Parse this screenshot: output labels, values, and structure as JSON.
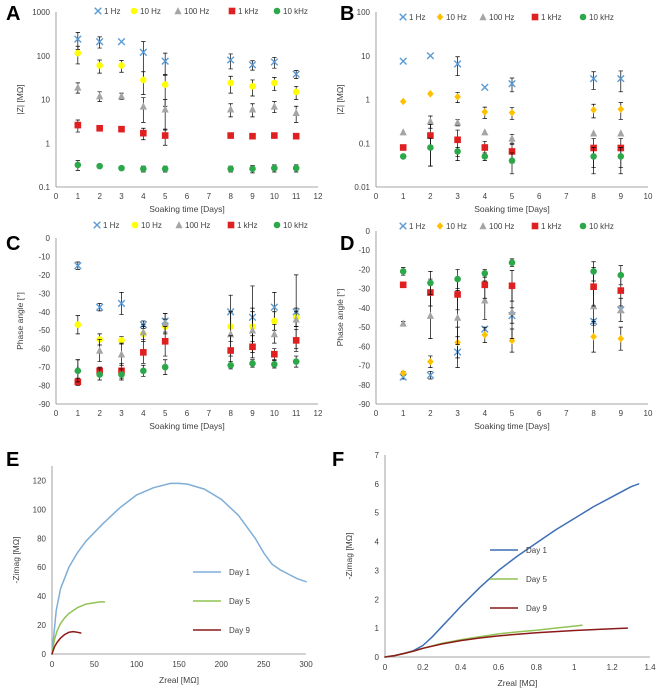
{
  "chart_data": [
    {
      "panel": "A",
      "type": "scatter",
      "yscale": "log",
      "xlabel": "Soaking time [Days]",
      "ylabel": "|Z| [MΩ]",
      "xlim": [
        0,
        12
      ],
      "xticks": [
        0,
        1,
        2,
        3,
        4,
        5,
        6,
        7,
        8,
        9,
        10,
        11,
        12
      ],
      "ylim": [
        0.1,
        1000
      ],
      "ytick_labels": [
        "0.1",
        "1",
        "10",
        "100",
        "1000"
      ],
      "ytick_values": [
        0.1,
        1,
        10,
        100,
        1000
      ],
      "series": [
        {
          "name": "1 Hz",
          "color": "#5b9bd5",
          "marker": "x",
          "x": [
            1,
            2,
            3,
            4,
            5,
            8,
            9,
            10,
            11
          ],
          "y": [
            240,
            210,
            210,
            120,
            75,
            80,
            62,
            72,
            38
          ],
          "err": [
            100,
            60,
            0,
            90,
            40,
            30,
            15,
            20,
            8
          ]
        },
        {
          "name": "10 Hz",
          "color": "#ffff00",
          "marker": "circle",
          "x": [
            1,
            2,
            3,
            4,
            5,
            8,
            9,
            10,
            11
          ],
          "y": [
            115,
            60,
            60,
            28,
            22,
            24,
            20,
            24,
            15
          ],
          "err": [
            50,
            20,
            18,
            15,
            15,
            10,
            8,
            8,
            5
          ]
        },
        {
          "name": "100 Hz",
          "color": "#a5a5a5",
          "marker": "triangle",
          "x": [
            1,
            2,
            3,
            4,
            5,
            8,
            9,
            10,
            11
          ],
          "y": [
            19,
            12,
            12,
            7,
            6,
            6,
            6,
            7,
            5
          ],
          "err": [
            5,
            3,
            2,
            4,
            4,
            2,
            2,
            2,
            2
          ]
        },
        {
          "name": "1 kHz",
          "color": "#e02020",
          "marker": "square",
          "x": [
            1,
            2,
            3,
            4,
            5,
            8,
            9,
            10,
            11
          ],
          "y": [
            2.6,
            2.2,
            2.1,
            1.7,
            1.5,
            1.5,
            1.45,
            1.5,
            1.45
          ],
          "err": [
            0.8,
            0,
            0,
            0.5,
            0.6,
            0,
            0,
            0,
            0
          ]
        },
        {
          "name": "10 kHz",
          "color": "#2ca84b",
          "marker": "circle",
          "x": [
            1,
            2,
            3,
            4,
            5,
            8,
            9,
            10,
            11
          ],
          "y": [
            0.32,
            0.3,
            0.27,
            0.26,
            0.26,
            0.26,
            0.26,
            0.27,
            0.27
          ],
          "err": [
            0.08,
            0,
            0,
            0.04,
            0.04,
            0.04,
            0.05,
            0.05,
            0.05
          ]
        }
      ]
    },
    {
      "panel": "B",
      "type": "scatter",
      "yscale": "log",
      "xlabel": "Soaking time [Days]",
      "ylabel": "|Z| [MΩ]",
      "xlim": [
        0,
        10
      ],
      "xticks": [
        0,
        1,
        2,
        3,
        4,
        5,
        6,
        7,
        8,
        9,
        10
      ],
      "ylim": [
        0.01,
        100
      ],
      "ytick_labels": [
        "0.01",
        "0.1",
        "1",
        "10",
        "100"
      ],
      "ytick_values": [
        0.01,
        0.1,
        1,
        10,
        100
      ],
      "series": [
        {
          "name": "1 Hz",
          "color": "#5b9bd5",
          "marker": "x",
          "x": [
            1,
            2,
            3,
            4,
            5,
            8,
            9
          ],
          "y": [
            7.5,
            10,
            6.5,
            1.9,
            2.3,
            3.0,
            3.0
          ],
          "err": [
            0,
            0,
            3,
            0,
            0.8,
            1.3,
            1.5
          ]
        },
        {
          "name": "10 Hz",
          "color": "#ffc000",
          "marker": "diamond",
          "x": [
            1,
            2,
            3,
            4,
            5,
            8,
            9
          ],
          "y": [
            0.9,
            1.35,
            1.15,
            0.52,
            0.5,
            0.58,
            0.6
          ],
          "err": [
            0,
            0,
            0.3,
            0.15,
            0.15,
            0.2,
            0.25
          ]
        },
        {
          "name": "100 Hz",
          "color": "#a5a5a5",
          "marker": "triangle",
          "x": [
            1,
            2,
            3,
            4,
            5,
            8,
            9
          ],
          "y": [
            0.18,
            0.32,
            0.3,
            0.18,
            0.13,
            0.17,
            0.17
          ],
          "err": [
            0,
            0.1,
            0.05,
            0,
            0.03,
            0,
            0
          ]
        },
        {
          "name": "1 kHz",
          "color": "#e02020",
          "marker": "square",
          "x": [
            1,
            2,
            3,
            4,
            5,
            8,
            9
          ],
          "y": [
            0.08,
            0.15,
            0.12,
            0.08,
            0.065,
            0.078,
            0.078
          ],
          "err": [
            0,
            0.12,
            0.08,
            0.03,
            0.03,
            0.05,
            0.05
          ]
        },
        {
          "name": "10 kHz",
          "color": "#2ca84b",
          "marker": "circle",
          "x": [
            1,
            2,
            3,
            4,
            5,
            8,
            9
          ],
          "y": [
            0.05,
            0.08,
            0.065,
            0.05,
            0.04,
            0.05,
            0.05
          ],
          "err": [
            0,
            0.05,
            0.015,
            0.01,
            0.02,
            0.03,
            0.03
          ]
        }
      ]
    },
    {
      "panel": "C",
      "type": "scatter",
      "xlabel": "Soaking time [Days]",
      "ylabel": "Phase angle [°]",
      "xlim": [
        0,
        12
      ],
      "xticks": [
        0,
        1,
        2,
        3,
        4,
        5,
        6,
        7,
        8,
        9,
        10,
        11,
        12
      ],
      "ylim": [
        -90,
        0
      ],
      "yticks": [
        0,
        -10,
        -20,
        -30,
        -40,
        -50,
        -60,
        -70,
        -80,
        -90
      ],
      "series": [
        {
          "name": "1 Hz",
          "color": "#5b9bd5",
          "marker": "x",
          "x": [
            1,
            2,
            3,
            4,
            5,
            8,
            9,
            10,
            11
          ],
          "y": [
            -15,
            -37.5,
            -35.5,
            -47,
            -45,
            -40,
            -43,
            -37.5,
            -40
          ],
          "err": [
            2,
            2,
            6,
            2,
            4,
            9,
            17,
            8,
            20
          ]
        },
        {
          "name": "10 Hz",
          "color": "#ffff00",
          "marker": "circle",
          "x": [
            1,
            2,
            3,
            4,
            5,
            8,
            9,
            10,
            11
          ],
          "y": [
            -47,
            -55,
            -55.5,
            -52,
            -48,
            -48,
            -48,
            -45,
            -43
          ],
          "err": [
            5,
            3,
            2,
            4,
            4,
            8,
            8,
            5,
            5
          ]
        },
        {
          "name": "100 Hz",
          "color": "#a5a5a5",
          "marker": "triangle",
          "x": [
            1,
            2,
            3,
            4,
            5,
            8,
            9,
            10,
            11
          ],
          "y": [
            -71,
            -61,
            -63,
            -51,
            -46,
            -52,
            -50,
            -52,
            -44
          ],
          "err": [
            5,
            6,
            6,
            4,
            5,
            12,
            12,
            5,
            4
          ]
        },
        {
          "name": "1 kHz",
          "color": "#e02020",
          "marker": "square",
          "x": [
            1,
            2,
            3,
            4,
            5,
            8,
            9,
            10,
            11
          ],
          "y": [
            -78,
            -72,
            -72,
            -62,
            -56,
            -61,
            -59,
            -63,
            -55.5
          ],
          "err": [
            2,
            2,
            4,
            6,
            8,
            8,
            6,
            3,
            6
          ]
        },
        {
          "name": "10 kHz",
          "color": "#2ca84b",
          "marker": "circle",
          "x": [
            1,
            2,
            3,
            4,
            5,
            8,
            9,
            10,
            11
          ],
          "y": [
            -72,
            -74,
            -74,
            -72,
            -70,
            -69,
            -68,
            -68.5,
            -67
          ],
          "err": [
            6,
            3,
            3,
            3,
            4,
            2,
            2,
            2,
            3
          ]
        }
      ]
    },
    {
      "panel": "D",
      "type": "scatter",
      "xlabel": "Soaking time [Days]",
      "ylabel": "Phase angle [°]",
      "xlim": [
        0,
        10
      ],
      "xticks": [
        0,
        1,
        2,
        3,
        4,
        5,
        6,
        7,
        8,
        9,
        10
      ],
      "ylim": [
        -90,
        0
      ],
      "yticks": [
        0,
        -10,
        -20,
        -30,
        -40,
        -50,
        -60,
        -70,
        -80,
        -90
      ],
      "series": [
        {
          "name": "1 Hz",
          "color": "#5b9bd5",
          "marker": "x",
          "x": [
            1,
            2,
            3,
            4,
            5,
            8,
            9
          ],
          "y": [
            -76,
            -75,
            -63,
            -51,
            -44,
            -47,
            -41
          ],
          "err": [
            1,
            2,
            8,
            0,
            4,
            1,
            1
          ]
        },
        {
          "name": "10 Hz",
          "color": "#ffc000",
          "marker": "diamond",
          "x": [
            1,
            2,
            3,
            4,
            5,
            8,
            9
          ],
          "y": [
            -74,
            -68,
            -58,
            -54,
            -57,
            -55,
            -56
          ],
          "err": [
            1,
            3,
            8,
            4,
            6,
            8,
            6
          ]
        },
        {
          "name": "100 Hz",
          "color": "#a5a5a5",
          "marker": "triangle",
          "x": [
            1,
            2,
            3,
            4,
            5,
            8,
            9
          ],
          "y": [
            -48,
            -44,
            -45,
            -36,
            -42,
            -39,
            -41
          ],
          "err": [
            1,
            12,
            14,
            10,
            14,
            10,
            6
          ]
        },
        {
          "name": "1 kHz",
          "color": "#e02020",
          "marker": "square",
          "x": [
            1,
            2,
            3,
            4,
            5,
            8,
            9
          ],
          "y": [
            -28,
            -32,
            -33,
            -28,
            -28.5,
            -29,
            -31
          ],
          "err": [
            0,
            7,
            8,
            7,
            8,
            10,
            8
          ]
        },
        {
          "name": "10 kHz",
          "color": "#2ca84b",
          "marker": "circle",
          "x": [
            1,
            2,
            3,
            4,
            5,
            8,
            9
          ],
          "y": [
            -21,
            -27,
            -25,
            -22,
            -16.5,
            -21,
            -23
          ],
          "err": [
            2,
            6,
            5,
            2,
            2,
            5,
            5
          ]
        }
      ]
    },
    {
      "panel": "E",
      "type": "line",
      "xlabel": "Zreal [MΩ]",
      "ylabel": "-Zimag [MΩ]",
      "xlim": [
        0,
        300
      ],
      "xticks": [
        0,
        50,
        100,
        150,
        200,
        250,
        300
      ],
      "ylim": [
        0,
        130
      ],
      "yticks": [
        0,
        20,
        40,
        60,
        80,
        100,
        120
      ],
      "series": [
        {
          "name": "Day 1",
          "color": "#7eaed8",
          "x": [
            0,
            5,
            10,
            20,
            30,
            40,
            60,
            80,
            100,
            120,
            140,
            150,
            160,
            180,
            200,
            220,
            240,
            250,
            260,
            270,
            280,
            290,
            300
          ],
          "y": [
            0,
            30,
            45,
            60,
            70,
            78,
            90,
            101,
            110,
            115,
            118,
            118,
            117.5,
            114,
            107,
            96,
            80,
            70,
            62,
            58,
            55,
            52,
            50
          ]
        },
        {
          "name": "Day 5",
          "color": "#92c353",
          "x": [
            0,
            3,
            6,
            10,
            15,
            20,
            30,
            40,
            50,
            57,
            62
          ],
          "y": [
            0,
            10,
            16,
            21,
            25,
            28,
            32,
            34.5,
            35.5,
            36,
            36
          ]
        },
        {
          "name": "Day 9",
          "color": "#8b1a1a",
          "x": [
            0,
            3,
            6,
            10,
            15,
            20,
            25,
            30,
            34
          ],
          "y": [
            0,
            5,
            8,
            11,
            13.5,
            15,
            15.5,
            15,
            14.5
          ]
        }
      ]
    },
    {
      "panel": "F",
      "type": "line",
      "xlabel": "Zreal [MΩ]",
      "ylabel": "-Zimag [MΩ]",
      "xlim": [
        0,
        1.4
      ],
      "xticks": [
        0,
        0.2,
        0.4,
        0.6,
        0.8,
        1,
        1.2,
        1.4
      ],
      "xtick_labels": [
        "0",
        "0.2",
        "0.4",
        "0.6",
        "0.8",
        "1",
        "1.2",
        "1.4"
      ],
      "ylim": [
        0,
        7
      ],
      "yticks": [
        0,
        1,
        2,
        3,
        4,
        5,
        6,
        7
      ],
      "series": [
        {
          "name": "Day 1",
          "color": "#3d6fb6",
          "x": [
            0,
            0.05,
            0.1,
            0.15,
            0.2,
            0.25,
            0.3,
            0.35,
            0.4,
            0.5,
            0.6,
            0.7,
            0.8,
            0.9,
            1.0,
            1.1,
            1.2,
            1.3,
            1.34
          ],
          "y": [
            0,
            0.05,
            0.12,
            0.22,
            0.4,
            0.7,
            1.05,
            1.4,
            1.75,
            2.4,
            3.0,
            3.5,
            3.95,
            4.4,
            4.8,
            5.2,
            5.55,
            5.9,
            6.0
          ]
        },
        {
          "name": "Day 5",
          "color": "#92c353",
          "x": [
            0,
            0.05,
            0.1,
            0.15,
            0.2,
            0.3,
            0.4,
            0.5,
            0.6,
            0.7,
            0.8,
            0.9,
            1.0,
            1.04
          ],
          "y": [
            0,
            0.05,
            0.12,
            0.2,
            0.3,
            0.47,
            0.6,
            0.7,
            0.8,
            0.87,
            0.93,
            1.0,
            1.07,
            1.1
          ]
        },
        {
          "name": "Day 9",
          "color": "#8b1a1a",
          "x": [
            0,
            0.05,
            0.1,
            0.15,
            0.2,
            0.3,
            0.4,
            0.5,
            0.6,
            0.7,
            0.8,
            0.9,
            1.0,
            1.1,
            1.2,
            1.28
          ],
          "y": [
            0,
            0.05,
            0.12,
            0.2,
            0.3,
            0.45,
            0.57,
            0.66,
            0.73,
            0.79,
            0.84,
            0.88,
            0.92,
            0.95,
            0.98,
            1.0
          ]
        }
      ]
    }
  ],
  "panel_labels": [
    "A",
    "B",
    "C",
    "D",
    "E",
    "F"
  ]
}
